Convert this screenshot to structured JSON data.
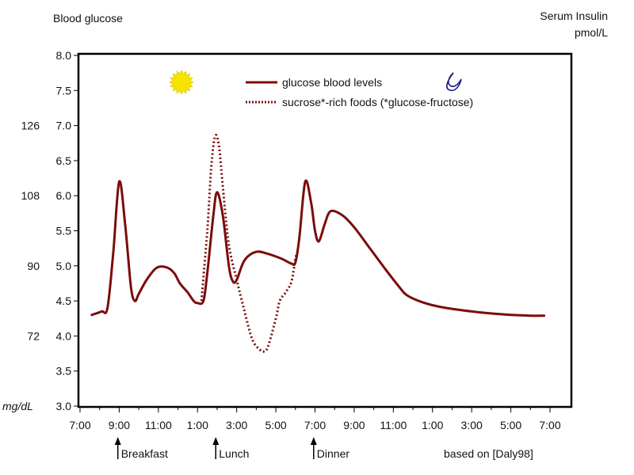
{
  "chart_data": {
    "type": "line",
    "title": "",
    "left_axis_title": "Blood glucose",
    "right_axis_title_line1": "Serum Insulin",
    "right_axis_title_line2": "pmol/L",
    "left_unit_label": "mg/dL",
    "y_ticks": [
      "3.0",
      "3.5",
      "4.0",
      "4.5",
      "5.0",
      "5.5",
      "6.0",
      "6.5",
      "7.0",
      "7.5",
      "8.0"
    ],
    "ylim": [
      3.0,
      8.0
    ],
    "mgdl_ticks": [
      {
        "label": "72",
        "at": 4.0
      },
      {
        "label": "90",
        "at": 5.0
      },
      {
        "label": "108",
        "at": 6.0
      },
      {
        "label": "126",
        "at": 7.0
      }
    ],
    "x_ticks": [
      "7:00",
      "9:00",
      "11:00",
      "1:00",
      "3:00",
      "5:00",
      "7:00",
      "9:00",
      "11:00",
      "1:00",
      "3:00",
      "5:00",
      "7:00"
    ],
    "xlim": [
      0,
      24
    ],
    "grid": false,
    "legend_placement": "top-center",
    "series": [
      {
        "name": "glucose blood levels",
        "color": "#7b0c0c",
        "style": "solid",
        "points": [
          [
            0.6,
            4.3
          ],
          [
            1.1,
            4.35
          ],
          [
            1.4,
            4.4
          ],
          [
            1.7,
            5.2
          ],
          [
            2.0,
            6.2
          ],
          [
            2.3,
            5.6
          ],
          [
            2.6,
            4.7
          ],
          [
            2.8,
            4.5
          ],
          [
            3.0,
            4.6
          ],
          [
            3.4,
            4.8
          ],
          [
            3.9,
            4.97
          ],
          [
            4.4,
            4.98
          ],
          [
            4.8,
            4.9
          ],
          [
            5.1,
            4.75
          ],
          [
            5.5,
            4.62
          ],
          [
            5.8,
            4.5
          ],
          [
            6.0,
            4.47
          ],
          [
            6.3,
            4.5
          ],
          [
            6.5,
            4.9
          ],
          [
            6.8,
            5.7
          ],
          [
            7.0,
            6.05
          ],
          [
            7.3,
            5.7
          ],
          [
            7.6,
            5.0
          ],
          [
            7.8,
            4.78
          ],
          [
            8.0,
            4.8
          ],
          [
            8.4,
            5.08
          ],
          [
            9.0,
            5.2
          ],
          [
            9.6,
            5.17
          ],
          [
            10.3,
            5.1
          ],
          [
            10.8,
            5.03
          ],
          [
            11.0,
            5.05
          ],
          [
            11.2,
            5.4
          ],
          [
            11.5,
            6.2
          ],
          [
            11.8,
            5.9
          ],
          [
            12.0,
            5.5
          ],
          [
            12.2,
            5.35
          ],
          [
            12.5,
            5.6
          ],
          [
            12.8,
            5.78
          ],
          [
            13.4,
            5.72
          ],
          [
            14.0,
            5.55
          ],
          [
            14.8,
            5.25
          ],
          [
            15.6,
            4.95
          ],
          [
            16.3,
            4.7
          ],
          [
            16.7,
            4.58
          ],
          [
            17.5,
            4.48
          ],
          [
            18.5,
            4.41
          ],
          [
            20.0,
            4.35
          ],
          [
            21.5,
            4.31
          ],
          [
            23.0,
            4.29
          ],
          [
            23.7,
            4.29
          ]
        ]
      },
      {
        "name": "sucrose*-rich foods (*glucose-fructose)",
        "color": "#7b0c0c",
        "style": "dotted",
        "points": [
          [
            6.2,
            4.5
          ],
          [
            6.5,
            5.5
          ],
          [
            6.7,
            6.4
          ],
          [
            6.9,
            6.85
          ],
          [
            7.1,
            6.7
          ],
          [
            7.3,
            6.1
          ],
          [
            7.6,
            5.3
          ],
          [
            8.0,
            4.8
          ],
          [
            8.4,
            4.35
          ],
          [
            8.8,
            3.95
          ],
          [
            9.2,
            3.8
          ],
          [
            9.4,
            3.78
          ],
          [
            9.6,
            3.85
          ],
          [
            10.0,
            4.25
          ],
          [
            10.2,
            4.5
          ],
          [
            10.5,
            4.62
          ],
          [
            10.8,
            4.78
          ],
          [
            11.0,
            5.1
          ],
          [
            11.1,
            5.2
          ]
        ]
      }
    ],
    "meal_markers": [
      {
        "label": "Breakfast",
        "x": 1.0
      },
      {
        "label": "Lunch",
        "x": 6.0
      },
      {
        "label": "Dinner",
        "x": 11.0
      }
    ],
    "source_note": "based on [Daly98]",
    "icons": {
      "day": "sun-icon",
      "night": "moon-icon"
    },
    "colors": {
      "series": "#7b0c0c",
      "sun": "#f5e400",
      "moon": "#1a1a8a",
      "axis": "#000000"
    }
  }
}
